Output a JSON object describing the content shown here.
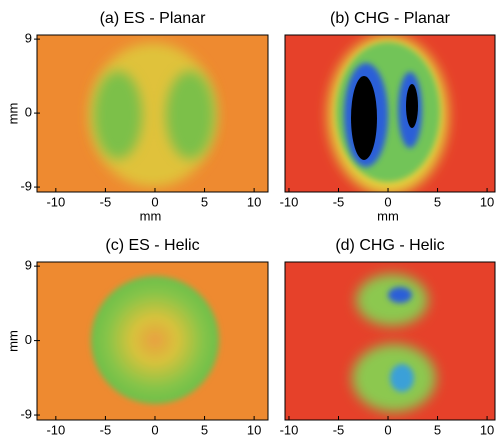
{
  "chart_data": [
    {
      "type": "image",
      "title": "(a) ES - Planar",
      "xlabel": "mm",
      "ylabel": "mm",
      "xlim": [
        -11.9,
        11.4
      ],
      "ylim": [
        -9.6,
        9.5
      ],
      "xticks": [
        -10,
        -5,
        0,
        5,
        10
      ],
      "yticks": [
        -9,
        0,
        9
      ]
    },
    {
      "type": "image",
      "title": "(b) CHG - Planar",
      "xlabel": "mm",
      "xlim": [
        -10.4,
        10.8
      ],
      "ylim": [
        -9.6,
        9.5
      ],
      "xticks": [
        -10,
        -5,
        0,
        5,
        10
      ]
    },
    {
      "type": "image",
      "title": "(c) ES - Helic",
      "ylabel": "mm",
      "xlim": [
        -11.9,
        11.4
      ],
      "ylim": [
        -9.6,
        9.5
      ],
      "xticks": [
        -10,
        -5,
        0,
        5,
        10
      ],
      "yticks": [
        -9,
        0,
        9
      ]
    },
    {
      "type": "image",
      "title": "(d) CHG - Helic",
      "xlim": [
        -10.4,
        10.8
      ],
      "ylim": [
        -9.6,
        9.5
      ],
      "xticks": [
        -10,
        -5,
        0,
        5,
        10
      ]
    }
  ]
}
